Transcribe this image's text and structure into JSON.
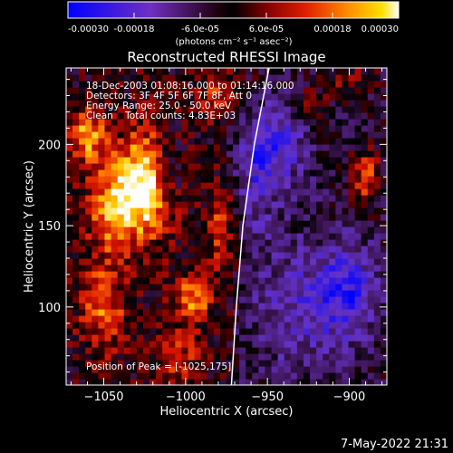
{
  "colorbar": {
    "tick_labels": [
      "-0.00030",
      "-0.00018",
      "-6.0e-05",
      "6.0e-05",
      "0.00018",
      "0.00030"
    ],
    "tick_values": [
      -0.0003,
      -0.00018,
      -6e-05,
      6e-05,
      0.00018,
      0.0003
    ],
    "range": [
      -0.0003,
      0.0003
    ],
    "units": "(photons cm⁻² s⁻¹ asec⁻²)"
  },
  "plot": {
    "title": "Reconstructed RHESSI Image",
    "annotation_lines": [
      "18-Dec-2003 01:08:16.000 to 01:14:16.000",
      "Detectors: 3F 4F 5F 6F 7F 8F, Att 0",
      "Energy Range: 25.0 - 50.0 keV",
      "Clean    Total counts: 4.83E+03"
    ],
    "peak_label": "Position of Peak = [-1025,175]"
  },
  "footer": {
    "timestamp": "7-May-2022 21:31"
  },
  "chart_data": {
    "type": "heatmap",
    "title": "Reconstructed RHESSI Image",
    "xlabel": "Heliocentric X (arcsec)",
    "ylabel": "Heliocentric Y (arcsec)",
    "xlim": [
      -1073,
      -877
    ],
    "ylim": [
      52,
      247
    ],
    "x_ticks": [
      -1050,
      -1000,
      -950,
      -900
    ],
    "x_tick_labels": [
      "−1050",
      "−1000",
      "−950",
      "−900"
    ],
    "y_ticks": [
      100,
      150,
      200
    ],
    "y_tick_labels": [
      "100",
      "150",
      "200"
    ],
    "peak_position": [
      -1025,
      175
    ],
    "limb_curve": [
      [
        -972,
        52
      ],
      [
        -969,
        100
      ],
      [
        -965,
        150
      ],
      [
        -958,
        200
      ],
      [
        -949,
        247
      ]
    ],
    "limb_color": "#ffffff",
    "colormap": [
      "#0000ff",
      "#6030d0",
      "#8040c0",
      "#000000",
      "#400000",
      "#c00000",
      "#ff6000",
      "#ffd000",
      "#ffffff"
    ],
    "blobs": [
      {
        "x": -1025,
        "y": 175,
        "amp": 0.0003,
        "sx": 12,
        "sy": 22
      },
      {
        "x": -1045,
        "y": 160,
        "amp": 0.0002,
        "sx": 10,
        "sy": 18
      },
      {
        "x": -1060,
        "y": 205,
        "amp": 0.0002,
        "sx": 8,
        "sy": 12
      },
      {
        "x": -1050,
        "y": 100,
        "amp": 0.00015,
        "sx": 10,
        "sy": 20
      },
      {
        "x": -995,
        "y": 105,
        "amp": 0.0002,
        "sx": 8,
        "sy": 10
      },
      {
        "x": -1005,
        "y": 70,
        "amp": 0.00012,
        "sx": 10,
        "sy": 10
      },
      {
        "x": -978,
        "y": 150,
        "amp": 0.00012,
        "sx": 6,
        "sy": 20
      },
      {
        "x": -980,
        "y": 230,
        "amp": 0.00012,
        "sx": 8,
        "sy": 10
      },
      {
        "x": -925,
        "y": 225,
        "amp": 0.0001,
        "sx": 8,
        "sy": 8
      },
      {
        "x": -890,
        "y": 180,
        "amp": 0.00018,
        "sx": 6,
        "sy": 12
      },
      {
        "x": -900,
        "y": 240,
        "amp": 0.0001,
        "sx": 10,
        "sy": 6
      },
      {
        "x": -930,
        "y": 100,
        "amp": -0.00012,
        "sx": 20,
        "sy": 30
      },
      {
        "x": -945,
        "y": 200,
        "amp": -0.00015,
        "sx": 14,
        "sy": 20
      },
      {
        "x": -960,
        "y": 180,
        "amp": -0.0001,
        "sx": 10,
        "sy": 30
      },
      {
        "x": -900,
        "y": 110,
        "amp": -0.00018,
        "sx": 12,
        "sy": 20
      },
      {
        "x": -1010,
        "y": 185,
        "amp": -0.00012,
        "sx": 6,
        "sy": 15
      }
    ]
  }
}
